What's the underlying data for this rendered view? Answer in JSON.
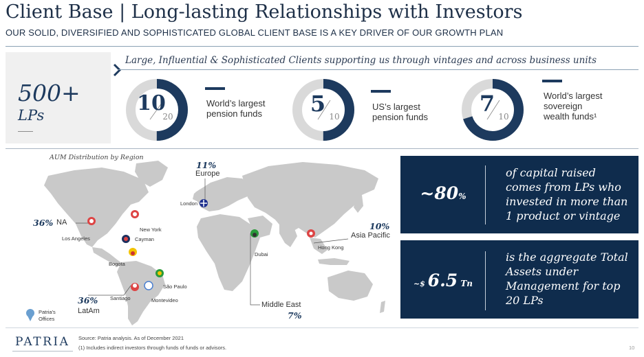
{
  "header": {
    "title": "Client Base | Long-lasting Relationships with Investors",
    "subtitle": "OUR SOLID, DIVERSIFIED AND SOPHISTICATED GLOBAL CLIENT BASE IS A KEY DRIVER OF OUR GROWTH PLAN"
  },
  "summary": {
    "value": "500+",
    "unit": "LPs"
  },
  "tagline": "Large, Influential & Sophisticated Clients supporting us through vintages and across business units",
  "stats": [
    {
      "value": "10",
      "total": "20",
      "fraction": 0.5,
      "line1": "World’s largest",
      "line2": "pension funds",
      "line3": ""
    },
    {
      "value": "5",
      "total": "10",
      "fraction": 0.5,
      "line1": "US’s largest",
      "line2": "pension funds",
      "line3": ""
    },
    {
      "value": "7",
      "total": "10",
      "fraction": 0.7,
      "line1": "World’s largest",
      "line2": "sovereign",
      "line3": "wealth funds¹"
    }
  ],
  "map": {
    "title": "AUM Distribution by Region",
    "regions": {
      "na": {
        "pct": "36%",
        "name": "NA"
      },
      "europe": {
        "pct": "11%",
        "name": "Europe"
      },
      "apac": {
        "pct": "10%",
        "name": "Asia Pacific"
      },
      "latam": {
        "pct": "36%",
        "name": "LatAm"
      },
      "me": {
        "pct": "7%",
        "name": "Middle East"
      }
    },
    "cities": [
      "Los Angeles",
      "New York",
      "Cayman",
      "Bogota",
      "Santiago",
      "São Paulo",
      "Montevideo",
      "London",
      "Dubai",
      "Hong Kong"
    ],
    "legend": {
      "line1": "Patria's",
      "line2": "Offices"
    }
  },
  "kpis": [
    {
      "prefix": "~80",
      "suffix": "%",
      "line1": "of capital raised",
      "line2": "comes from LPs who",
      "line3": "invested in more than",
      "line4": "1 product or vintage"
    },
    {
      "prefix": "~$ ",
      "main": "6.5",
      "suffix": " Tn",
      "line1": "is the aggregate Total",
      "line2": "Assets under",
      "line3": "Management for top",
      "line4": "20 LPs"
    }
  ],
  "footer": {
    "logo": "PATRIA",
    "source": "Source: Patria analysis. As of December 2021",
    "note": "(1) Includes indirect investors through funds of funds or advisors.",
    "page": "10"
  },
  "colors": {
    "navy": "#0f2c4d",
    "donut": "#1d3a5e",
    "track": "#d9d9d9",
    "map": "#c9c9c9"
  }
}
